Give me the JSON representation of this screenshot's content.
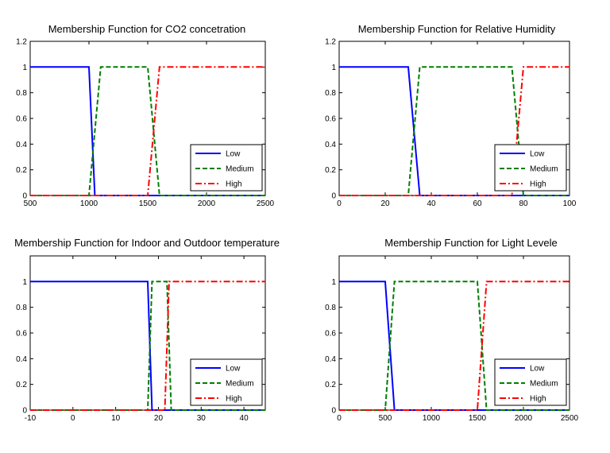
{
  "chart_data": [
    {
      "type": "line",
      "title": "Membership Function for CO2 concetration",
      "xlim": [
        500,
        2500
      ],
      "ylim": [
        0,
        1.2
      ],
      "xticks": [
        500,
        1000,
        1500,
        2000,
        2500
      ],
      "yticks": [
        0,
        0.2,
        0.4,
        0.6,
        0.8,
        1,
        1.2
      ],
      "legend_position": "bottom-right",
      "series": [
        {
          "name": "Low",
          "color": "#0000ff",
          "style": "solid",
          "x": [
            500,
            1000,
            1050,
            2500
          ],
          "y": [
            1,
            1,
            0,
            0
          ]
        },
        {
          "name": "Medium",
          "color": "#007f00",
          "style": "dashed",
          "x": [
            500,
            1000,
            1100,
            1500,
            1600,
            2500
          ],
          "y": [
            0,
            0,
            1,
            1,
            0,
            0
          ]
        },
        {
          "name": "High",
          "color": "#ff0000",
          "style": "dashdot",
          "x": [
            500,
            1500,
            1600,
            2500
          ],
          "y": [
            0,
            0,
            1,
            1
          ]
        }
      ]
    },
    {
      "type": "line",
      "title": "Membership Function for Relative Humidity",
      "xlim": [
        0,
        100
      ],
      "ylim": [
        0,
        1.2
      ],
      "xticks": [
        0,
        20,
        40,
        60,
        80,
        100
      ],
      "yticks": [
        0,
        0.2,
        0.4,
        0.6,
        0.8,
        1,
        1.2
      ],
      "legend_position": "bottom-right",
      "series": [
        {
          "name": "Low",
          "color": "#0000ff",
          "style": "solid",
          "x": [
            0,
            30,
            35,
            100
          ],
          "y": [
            1,
            1,
            0,
            0
          ]
        },
        {
          "name": "Medium",
          "color": "#007f00",
          "style": "dashed",
          "x": [
            0,
            30,
            35,
            75,
            80,
            100
          ],
          "y": [
            0,
            0,
            1,
            1,
            0,
            0
          ]
        },
        {
          "name": "High",
          "color": "#ff0000",
          "style": "dashdot",
          "x": [
            0,
            75,
            80,
            100
          ],
          "y": [
            0,
            0,
            1,
            1
          ]
        }
      ]
    },
    {
      "type": "line",
      "title": "Membership Function for Indoor and Outdoor temperature",
      "xlim": [
        -10,
        45
      ],
      "ylim": [
        0,
        1.2
      ],
      "xticks": [
        -10,
        0,
        10,
        20,
        30,
        40
      ],
      "yticks": [
        0,
        0.2,
        0.4,
        0.6,
        0.8,
        1
      ],
      "legend_position": "bottom-right",
      "series": [
        {
          "name": "Low",
          "color": "#0000ff",
          "style": "solid",
          "x": [
            -10,
            17.5,
            18.5,
            45
          ],
          "y": [
            1,
            1,
            0,
            0
          ]
        },
        {
          "name": "Medium",
          "color": "#007f00",
          "style": "dashed",
          "x": [
            -10,
            17.5,
            18.5,
            22,
            23,
            45
          ],
          "y": [
            0,
            0,
            1,
            1,
            0,
            0
          ]
        },
        {
          "name": "High",
          "color": "#ff0000",
          "style": "dashdot",
          "x": [
            -10,
            21.5,
            22.5,
            45
          ],
          "y": [
            0,
            0,
            1,
            1
          ]
        }
      ]
    },
    {
      "type": "line",
      "title": "Membership Function for Light Levele",
      "xlim": [
        0,
        2500
      ],
      "ylim": [
        0,
        1.2
      ],
      "xticks": [
        0,
        500,
        1000,
        1500,
        2000,
        2500
      ],
      "yticks": [
        0,
        0.2,
        0.4,
        0.6,
        0.8,
        1
      ],
      "legend_position": "bottom-right",
      "series": [
        {
          "name": "Low",
          "color": "#0000ff",
          "style": "solid",
          "x": [
            0,
            500,
            600,
            2500
          ],
          "y": [
            1,
            1,
            0,
            0
          ]
        },
        {
          "name": "Medium",
          "color": "#007f00",
          "style": "dashed",
          "x": [
            0,
            500,
            600,
            1500,
            1600,
            2500
          ],
          "y": [
            0,
            0,
            1,
            1,
            0,
            0
          ]
        },
        {
          "name": "High",
          "color": "#ff0000",
          "style": "dashdot",
          "x": [
            0,
            1500,
            1600,
            2500
          ],
          "y": [
            0,
            0,
            1,
            1
          ]
        }
      ]
    }
  ]
}
